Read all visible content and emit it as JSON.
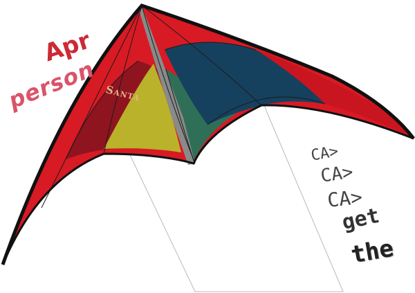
{
  "texts": {
    "apr": "Apr",
    "person": "person",
    "santa": "Santa",
    "ca_1": "CA>",
    "ca_2": "CA>",
    "ca_3": "CA>",
    "get": "get",
    "the": "the"
  },
  "colors": {
    "kite_red": "#d81a24",
    "kite_dark_red": "#8e1420",
    "kite_yellow": "#b9b22a",
    "kite_green": "#2f6f57",
    "kite_navy": "#15415f",
    "kite_frame": "#111111",
    "spine_gray": "#8a8a8a",
    "apr_text": "#cc2a36",
    "person_text": "#d9546a",
    "santa_text": "#e7b48a",
    "ca_text": "#444444",
    "get_text": "#333333",
    "the_text": "#222222",
    "line": "#b0b0b0"
  },
  "icons": {
    "kite": "stunt-kite-icon"
  }
}
